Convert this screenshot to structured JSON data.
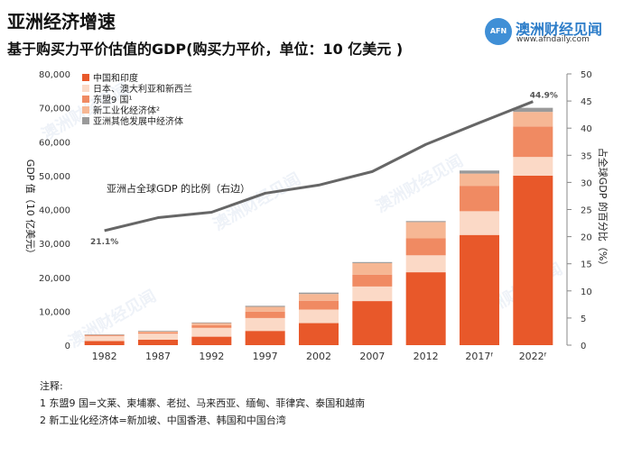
{
  "header": {
    "title": "亚洲经济增速",
    "subtitle": "基于购买力平价估值的GDP(购买力平价，单位：10 亿美元 )"
  },
  "brand": {
    "logo_text": "AFN",
    "name": "澳洲财经见闻",
    "url": "www.afndaily.com"
  },
  "watermark": {
    "text": "澳洲财经见闻"
  },
  "notes": {
    "title": "注释:",
    "line1": "1 东盟9 国=文莱、柬埔寨、老挝、马来西亚、缅甸、菲律宾、泰国和越南",
    "line2": "2 新工业化经济体=新加坡、中国香港、韩国和中国台湾"
  },
  "chart_data": {
    "type": "bar",
    "stacked": true,
    "categories": [
      "1982",
      "1987",
      "1992",
      "1997",
      "2002",
      "2007",
      "2012",
      "2017ᶠ",
      "2022ᶠ"
    ],
    "series": [
      {
        "name": "中国和印度",
        "color": "#e8582a",
        "values": [
          1200,
          1600,
          2500,
          4200,
          6500,
          13000,
          21500,
          32500,
          50000
        ]
      },
      {
        "name": "日本、澳大利亚和新西兰",
        "color": "#fbd9c6",
        "values": [
          1500,
          1800,
          2600,
          3800,
          4000,
          4300,
          5000,
          7000,
          5500
        ]
      },
      {
        "name": "东盟9 国¹",
        "color": "#f08a62",
        "values": [
          250,
          350,
          800,
          1900,
          2600,
          3500,
          5000,
          7500,
          9000
        ]
      },
      {
        "name": "新工业化经济体²",
        "color": "#f6b794",
        "values": [
          100,
          300,
          600,
          1400,
          2000,
          3400,
          4800,
          3600,
          4300
        ]
      },
      {
        "name": "亚洲其他发展中经济体",
        "color": "#9a9a9a",
        "values": [
          150,
          200,
          200,
          300,
          400,
          300,
          300,
          900,
          1200
        ]
      }
    ],
    "line_series": {
      "name": "亚洲占全球GDP 的比例（右边）",
      "color": "#666666",
      "values": [
        21.1,
        23.5,
        24.5,
        28,
        29.5,
        32,
        37,
        41,
        44.9
      ],
      "start_label": "21.1%",
      "end_label": "44.9%"
    },
    "ylabel": "GDP 值（10 亿美元）",
    "ylim": [
      0,
      80000
    ],
    "yticks": [
      "0",
      "10,000",
      "20,000",
      "30,000",
      "40,000",
      "50,000",
      "60,000",
      "70,000",
      "80,000"
    ],
    "y2label": "占全球GDP 的百分比（%）",
    "y2lim": [
      0,
      50
    ],
    "y2ticks": [
      "0",
      "5",
      "10",
      "15",
      "20",
      "25",
      "30",
      "35",
      "40",
      "45",
      "50"
    ],
    "grid": false,
    "legend_position": "top-left"
  }
}
